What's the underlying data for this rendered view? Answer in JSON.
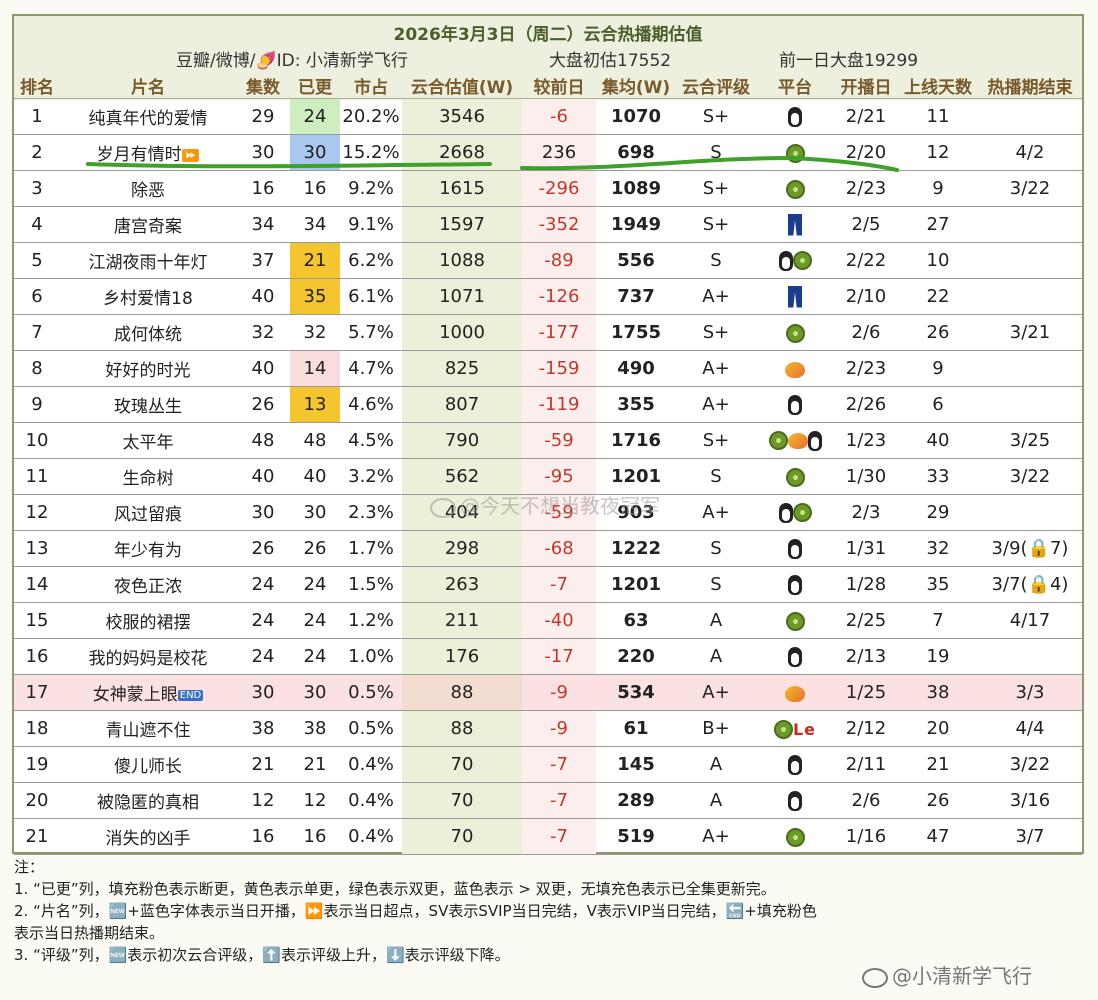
{
  "header": {
    "title": "2026年3月3日（周二）云合热播期估值",
    "source": "豆瓣/微博/🍠ID: 小清新学飞行",
    "base_estimate": "大盘初估17552",
    "prev_day": "前一日大盘19299"
  },
  "columns": [
    "排名",
    "片名",
    "集数",
    "已更",
    "市占",
    "云合估值(W)",
    "较前日",
    "集均(W)",
    "云合评级",
    "平台",
    "开播日",
    "上线天数",
    "热播期结束"
  ],
  "rows": [
    {
      "rank": "1",
      "name": "纯真年代的爱情",
      "eps": "29",
      "upd": "24",
      "upd_color": "green",
      "share": "20.2%",
      "est": "3546",
      "delta": "-6",
      "avg": "1070",
      "grade": "S+",
      "plat": [
        "penguin"
      ],
      "start": "2/21",
      "days": "11",
      "end": ""
    },
    {
      "rank": "2",
      "name": "岁月有情时",
      "badge": "ff",
      "eps": "30",
      "upd": "30",
      "upd_color": "blue",
      "share": "15.2%",
      "est": "2668",
      "delta": "236",
      "avg": "698",
      "grade": "S",
      "plat": [
        "kiwi"
      ],
      "start": "2/20",
      "days": "12",
      "end": "4/2"
    },
    {
      "rank": "3",
      "name": "除恶",
      "eps": "16",
      "upd": "16",
      "upd_color": "",
      "share": "9.2%",
      "est": "1615",
      "delta": "-296",
      "avg": "1089",
      "grade": "S+",
      "plat": [
        "kiwi"
      ],
      "start": "2/23",
      "days": "9",
      "end": "3/22"
    },
    {
      "rank": "4",
      "name": "唐宫奇案",
      "eps": "34",
      "upd": "34",
      "upd_color": "",
      "share": "9.1%",
      "est": "1597",
      "delta": "-352",
      "avg": "1949",
      "grade": "S+",
      "plat": [
        "iqiyi"
      ],
      "start": "2/5",
      "days": "27",
      "end": ""
    },
    {
      "rank": "5",
      "name": "江湖夜雨十年灯",
      "eps": "37",
      "upd": "21",
      "upd_color": "yellow",
      "share": "6.2%",
      "est": "1088",
      "delta": "-89",
      "avg": "556",
      "grade": "S",
      "plat": [
        "penguin",
        "kiwi"
      ],
      "start": "2/22",
      "days": "10",
      "end": ""
    },
    {
      "rank": "6",
      "name": "乡村爱情18",
      "eps": "40",
      "upd": "35",
      "upd_color": "yellow",
      "share": "6.1%",
      "est": "1071",
      "delta": "-126",
      "avg": "737",
      "grade": "A+",
      "plat": [
        "iqiyi"
      ],
      "start": "2/10",
      "days": "22",
      "end": ""
    },
    {
      "rank": "7",
      "name": "成何体统",
      "eps": "32",
      "upd": "32",
      "upd_color": "",
      "share": "5.7%",
      "est": "1000",
      "delta": "-177",
      "avg": "1755",
      "grade": "S+",
      "plat": [
        "kiwi"
      ],
      "start": "2/6",
      "days": "26",
      "end": "3/21"
    },
    {
      "rank": "8",
      "name": "好好的时光",
      "eps": "40",
      "upd": "14",
      "upd_color": "pink",
      "share": "4.7%",
      "est": "825",
      "delta": "-159",
      "avg": "490",
      "grade": "A+",
      "plat": [
        "mango"
      ],
      "start": "2/23",
      "days": "9",
      "end": ""
    },
    {
      "rank": "9",
      "name": "玫瑰丛生",
      "eps": "26",
      "upd": "13",
      "upd_color": "yellow",
      "share": "4.6%",
      "est": "807",
      "delta": "-119",
      "avg": "355",
      "grade": "A+",
      "plat": [
        "penguin"
      ],
      "start": "2/26",
      "days": "6",
      "end": ""
    },
    {
      "rank": "10",
      "name": "太平年",
      "eps": "48",
      "upd": "48",
      "upd_color": "",
      "share": "4.5%",
      "est": "790",
      "delta": "-59",
      "avg": "1716",
      "grade": "S+",
      "plat": [
        "kiwi",
        "mango",
        "penguin"
      ],
      "start": "1/23",
      "days": "40",
      "end": "3/25"
    },
    {
      "rank": "11",
      "name": "生命树",
      "eps": "40",
      "upd": "40",
      "upd_color": "",
      "share": "3.2%",
      "est": "562",
      "delta": "-95",
      "avg": "1201",
      "grade": "S",
      "plat": [
        "kiwi"
      ],
      "start": "1/30",
      "days": "33",
      "end": "3/22"
    },
    {
      "rank": "12",
      "name": "风过留痕",
      "eps": "30",
      "upd": "30",
      "upd_color": "",
      "share": "2.3%",
      "est": "404",
      "delta": "-59",
      "avg": "903",
      "grade": "A+",
      "plat": [
        "penguin",
        "kiwi"
      ],
      "start": "2/3",
      "days": "29",
      "end": ""
    },
    {
      "rank": "13",
      "name": "年少有为",
      "eps": "26",
      "upd": "26",
      "upd_color": "",
      "share": "1.7%",
      "est": "298",
      "delta": "-68",
      "avg": "1222",
      "grade": "S",
      "plat": [
        "penguin"
      ],
      "start": "1/31",
      "days": "32",
      "end": "3/9(🔒7)"
    },
    {
      "rank": "14",
      "name": "夜色正浓",
      "eps": "24",
      "upd": "24",
      "upd_color": "",
      "share": "1.5%",
      "est": "263",
      "delta": "-7",
      "avg": "1201",
      "grade": "S",
      "plat": [
        "penguin"
      ],
      "start": "1/28",
      "days": "35",
      "end": "3/7(🔒4)"
    },
    {
      "rank": "15",
      "name": "校服的裙摆",
      "eps": "24",
      "upd": "24",
      "upd_color": "",
      "share": "1.2%",
      "est": "211",
      "delta": "-40",
      "avg": "63",
      "grade": "A",
      "plat": [
        "kiwi"
      ],
      "start": "2/25",
      "days": "7",
      "end": "4/17"
    },
    {
      "rank": "16",
      "name": "我的妈妈是校花",
      "eps": "24",
      "upd": "24",
      "upd_color": "",
      "share": "1.0%",
      "est": "176",
      "delta": "-17",
      "avg": "220",
      "grade": "A",
      "plat": [
        "penguin"
      ],
      "start": "2/13",
      "days": "19",
      "end": ""
    },
    {
      "rank": "17",
      "name": "女神蒙上眼",
      "badge": "end",
      "row_pink": true,
      "eps": "30",
      "upd": "30",
      "upd_color": "",
      "share": "0.5%",
      "est": "88",
      "delta": "-9",
      "avg": "534",
      "grade": "A+",
      "plat": [
        "mango"
      ],
      "start": "1/25",
      "days": "38",
      "end": "3/3"
    },
    {
      "rank": "18",
      "name": "青山遮不住",
      "eps": "38",
      "upd": "38",
      "upd_color": "",
      "share": "0.5%",
      "est": "88",
      "delta": "-9",
      "avg": "61",
      "grade": "B+",
      "plat": [
        "kiwi",
        "le"
      ],
      "start": "2/12",
      "days": "20",
      "end": "4/4"
    },
    {
      "rank": "19",
      "name": "傻儿师长",
      "eps": "21",
      "upd": "21",
      "upd_color": "",
      "share": "0.4%",
      "est": "70",
      "delta": "-7",
      "avg": "145",
      "grade": "A",
      "plat": [
        "penguin"
      ],
      "start": "2/11",
      "days": "21",
      "end": "3/22"
    },
    {
      "rank": "20",
      "name": "被隐匿的真相",
      "eps": "12",
      "upd": "12",
      "upd_color": "",
      "share": "0.4%",
      "est": "70",
      "delta": "-7",
      "avg": "289",
      "grade": "A",
      "plat": [
        "penguin"
      ],
      "start": "2/6",
      "days": "26",
      "end": "3/16"
    },
    {
      "rank": "21",
      "name": "消失的凶手",
      "eps": "16",
      "upd": "16",
      "upd_color": "",
      "share": "0.4%",
      "est": "70",
      "delta": "-7",
      "avg": "519",
      "grade": "A+",
      "plat": [
        "kiwi"
      ],
      "start": "1/16",
      "days": "47",
      "end": "3/7"
    }
  ],
  "badges": {
    "ff": "⏩",
    "end": "END",
    "le": "Le"
  },
  "notes": [
    "注：",
    "1. “已更”列，填充粉色表示断更，黄色表示单更，绿色表示双更，蓝色表示 > 双更，无填充色表示已全集更新完。",
    "2. “片名”列，🆕+蓝色字体表示当日开播，⏩表示当日超点，SV表示SVIP当日完结，V表示VIP当日完结，🔚+填充粉色",
    "表示当日热播期结束。",
    "3. “评级”列，🆕表示初次云合评级，⬆️表示评级上升，⬇️表示评级下降。"
  ],
  "watermarks": {
    "center": "@今天不想当教夜冠军",
    "bottom": "@小清新学飞行"
  },
  "colors": {
    "green": "#cfeec0",
    "blue": "#a8c8f0",
    "yellow": "#f5c530",
    "pink": "#f9dcdc",
    "highlight_line": "#3fa02a"
  }
}
